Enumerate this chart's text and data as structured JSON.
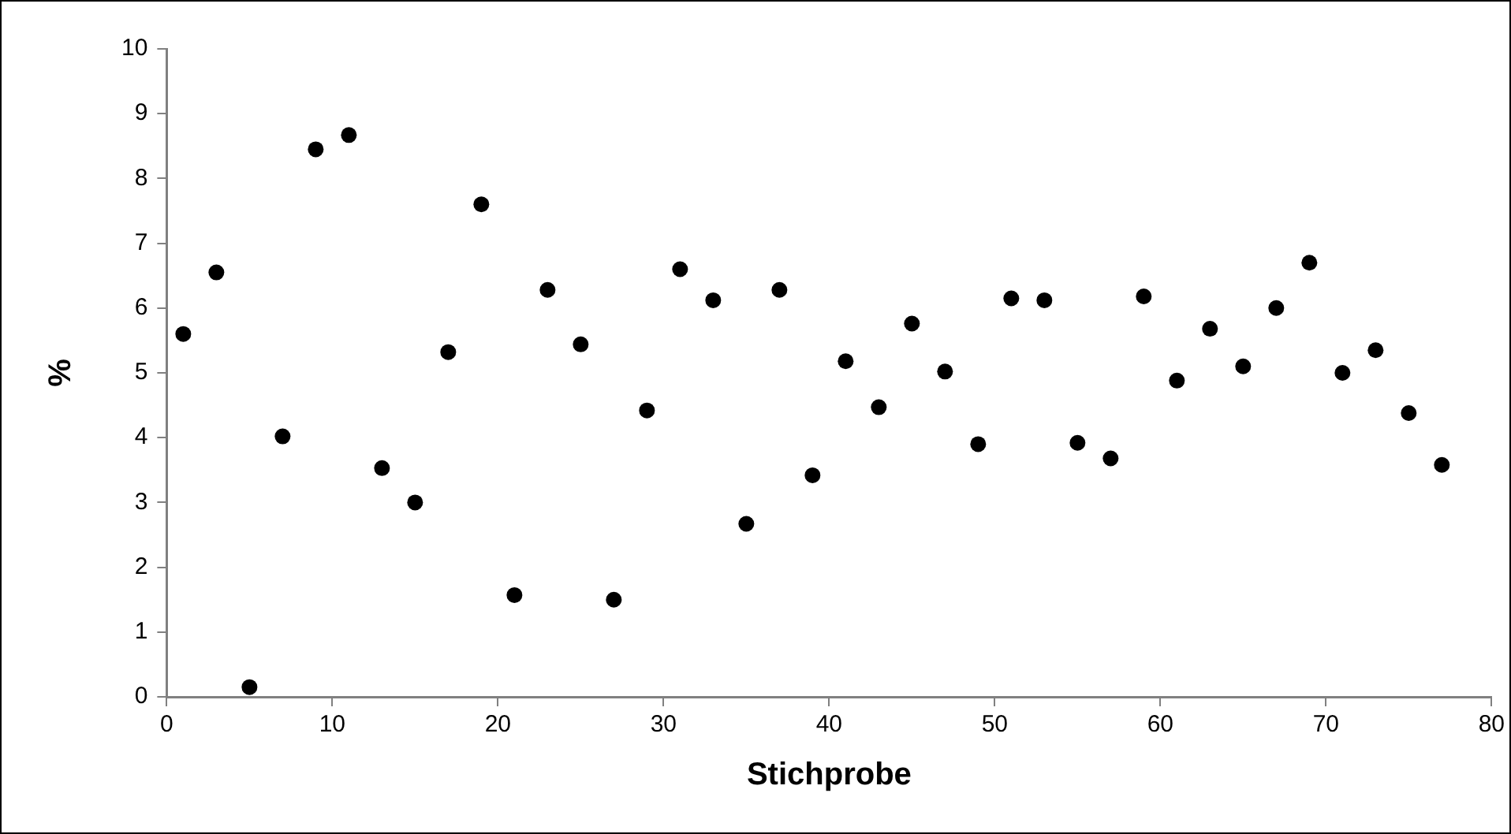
{
  "chart_data": {
    "type": "scatter",
    "xlabel": "Stichprobe",
    "ylabel": "%",
    "marker": "circle",
    "grid": false,
    "legend": false,
    "xlim": [
      0,
      80
    ],
    "xticks": [
      0,
      10,
      20,
      30,
      40,
      50,
      60,
      70,
      80
    ],
    "ylim": [
      0,
      10
    ],
    "yticks": [
      0,
      1,
      2,
      3,
      4,
      5,
      6,
      7,
      8,
      9,
      10
    ],
    "series": [
      {
        "color": "#000000",
        "x": [
          1,
          3,
          5,
          7,
          9,
          11,
          13,
          15,
          17,
          19,
          21,
          23,
          25,
          27,
          29,
          31,
          33,
          35,
          37,
          39,
          41,
          43,
          45,
          47,
          49,
          51,
          53,
          55,
          57,
          59,
          61,
          63,
          65,
          67,
          69,
          71,
          73,
          75,
          77
        ],
        "values": [
          5.6,
          6.55,
          0.15,
          4.02,
          8.45,
          8.67,
          3.53,
          3.0,
          5.32,
          7.6,
          1.57,
          6.28,
          5.44,
          1.5,
          4.42,
          6.6,
          6.12,
          2.67,
          6.28,
          3.42,
          5.18,
          4.47,
          5.76,
          5.02,
          3.9,
          6.15,
          6.12,
          3.92,
          3.68,
          6.18,
          4.88,
          5.68,
          5.1,
          6.0,
          6.7,
          5.0,
          5.35,
          4.38,
          3.58
        ]
      }
    ]
  }
}
